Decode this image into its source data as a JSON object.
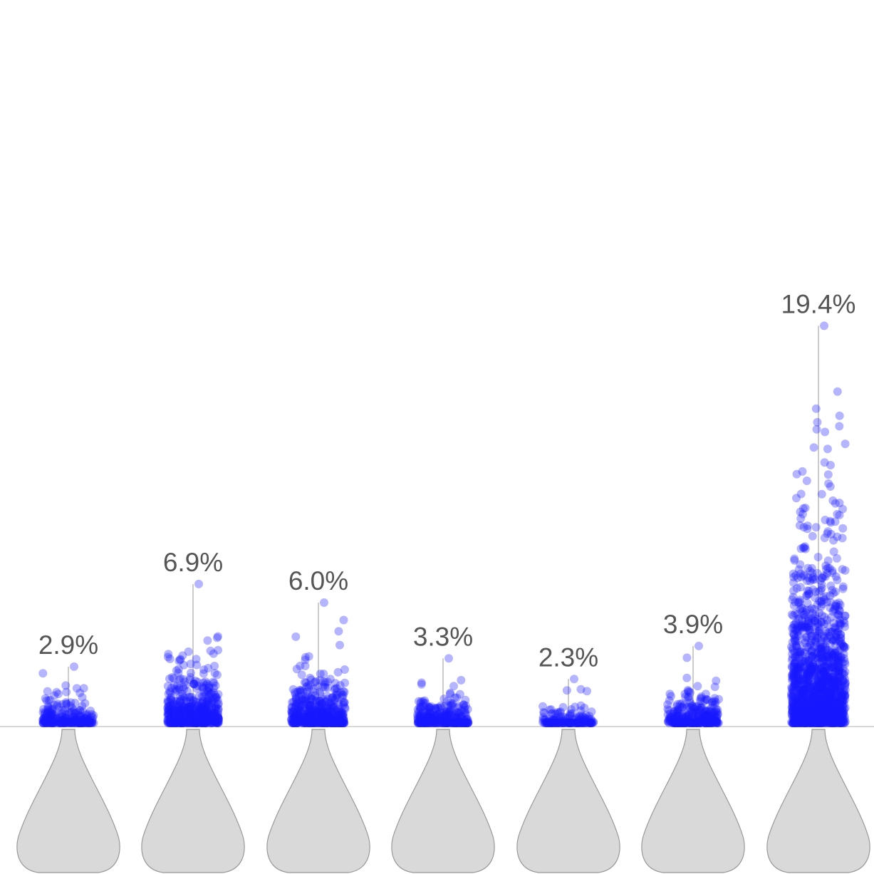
{
  "chart_data": {
    "type": "scatter",
    "title": "",
    "xlabel": "",
    "ylabel": "",
    "ylim": [
      0,
      0.2
    ],
    "grid": false,
    "legend": "none",
    "colors": {
      "points": "#1a1aff",
      "violin_fill": "#d9d9d9",
      "violin_stroke": "#999999",
      "baseline": "#cccccc",
      "whisker": "#aaaaaa",
      "label": "#555555"
    },
    "series": [
      {
        "max_label": "2.9%",
        "max": 0.029,
        "point_count": 260
      },
      {
        "max_label": "6.9%",
        "max": 0.069,
        "point_count": 520
      },
      {
        "max_label": "6.0%",
        "max": 0.06,
        "point_count": 520
      },
      {
        "max_label": "3.3%",
        "max": 0.033,
        "point_count": 330
      },
      {
        "max_label": "2.3%",
        "max": 0.023,
        "point_count": 180
      },
      {
        "max_label": "3.9%",
        "max": 0.039,
        "point_count": 330
      },
      {
        "max_label": "19.4%",
        "max": 0.194,
        "point_count": 1500
      }
    ]
  }
}
